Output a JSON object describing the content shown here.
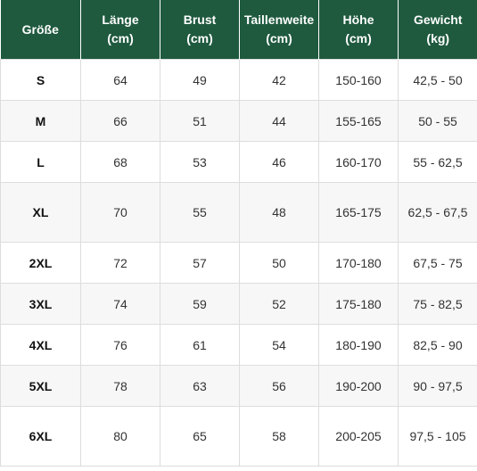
{
  "headers": [
    [
      "Größe"
    ],
    [
      "Länge",
      "(cm)"
    ],
    [
      "Brust",
      "(cm)"
    ],
    [
      "Taillenweite",
      "(cm)"
    ],
    [
      "Höhe",
      "(cm)"
    ],
    [
      "Gewicht",
      "(kg)"
    ]
  ],
  "rows": [
    {
      "size": "S",
      "laenge": "64",
      "brust": "49",
      "taille": "42",
      "hoehe": "150-160",
      "gewicht": "42,5 - 50"
    },
    {
      "size": "M",
      "laenge": "66",
      "brust": "51",
      "taille": "44",
      "hoehe": "155-165",
      "gewicht": "50 - 55"
    },
    {
      "size": "L",
      "laenge": "68",
      "brust": "53",
      "taille": "46",
      "hoehe": "160-170",
      "gewicht": "55 - 62,5"
    },
    {
      "size": "XL",
      "laenge": "70",
      "brust": "55",
      "taille": "48",
      "hoehe": "165-175",
      "gewicht": "62,5 - 67,5"
    },
    {
      "size": "2XL",
      "laenge": "72",
      "brust": "57",
      "taille": "50",
      "hoehe": "170-180",
      "gewicht": "67,5 - 75"
    },
    {
      "size": "3XL",
      "laenge": "74",
      "brust": "59",
      "taille": "52",
      "hoehe": "175-180",
      "gewicht": "75 - 82,5"
    },
    {
      "size": "4XL",
      "laenge": "76",
      "brust": "61",
      "taille": "54",
      "hoehe": "180-190",
      "gewicht": "82,5 - 90"
    },
    {
      "size": "5XL",
      "laenge": "78",
      "brust": "63",
      "taille": "56",
      "hoehe": "190-200",
      "gewicht": "90 - 97,5"
    },
    {
      "size": "6XL",
      "laenge": "80",
      "brust": "65",
      "taille": "58",
      "hoehe": "200-205",
      "gewicht": "97,5 - 105"
    }
  ],
  "colors": {
    "header_bg": "#1f5a3f",
    "header_text": "#ffffff",
    "border": "#dddddd"
  }
}
